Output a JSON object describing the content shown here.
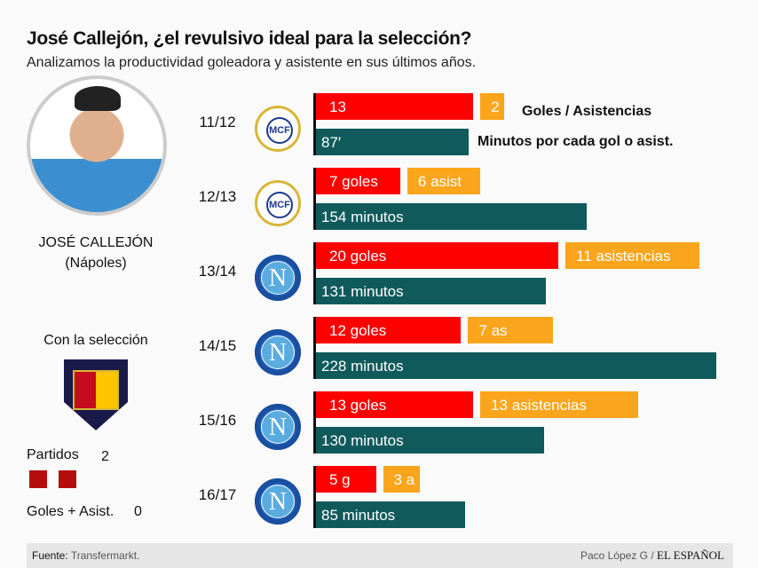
{
  "title": "José Callejón, ¿el revulsivo ideal para la selección?",
  "subtitle": "Analizamos la productividad goleadora y asistente en sus últimos años.",
  "player": {
    "name": "JOSÉ CALLEJÓN",
    "club": "(Nápoles)"
  },
  "national": {
    "heading": "Con la selección",
    "partidos_label": "Partidos",
    "partidos": "2",
    "ga_label": "Goles + Asist.",
    "ga": "0"
  },
  "legend": {
    "goals_assists": "Goles / Asistencias",
    "minutes": "Minutos por cada gol o asist."
  },
  "colors": {
    "goals": "#fe0000",
    "assists": "#fba51c",
    "minutes": "#105a5c"
  },
  "chart_data": {
    "type": "bar",
    "categories": [
      "11/12",
      "12/13",
      "13/14",
      "14/15",
      "15/16",
      "16/17"
    ],
    "clubs": [
      "real-madrid",
      "real-madrid",
      "napoli",
      "napoli",
      "napoli",
      "napoli"
    ],
    "series": [
      {
        "name": "Goles",
        "values": [
          13,
          7,
          20,
          12,
          13,
          5
        ],
        "labels": [
          "13",
          "7 goles",
          "20 goles",
          "12 goles",
          "13 goles",
          "5 g"
        ]
      },
      {
        "name": "Asistencias",
        "values": [
          2,
          6,
          11,
          7,
          13,
          3
        ],
        "labels": [
          "2",
          "6 asist",
          "11 asistencias",
          "7 as",
          "13 asistencias",
          "3 a"
        ]
      },
      {
        "name": "Minutos por cada gol o asist.",
        "values": [
          87,
          154,
          131,
          228,
          130,
          85
        ],
        "labels": [
          "87′",
          "154 minutos",
          "131 minutos",
          "228  minutos",
          "130 minutos",
          "85 minutos"
        ]
      }
    ]
  },
  "footer": {
    "source_label": "Fuente:",
    "source": "Transfermarkt.",
    "author": "Paco López G",
    "separator": "/",
    "brand": "EL ESPAÑOL"
  }
}
